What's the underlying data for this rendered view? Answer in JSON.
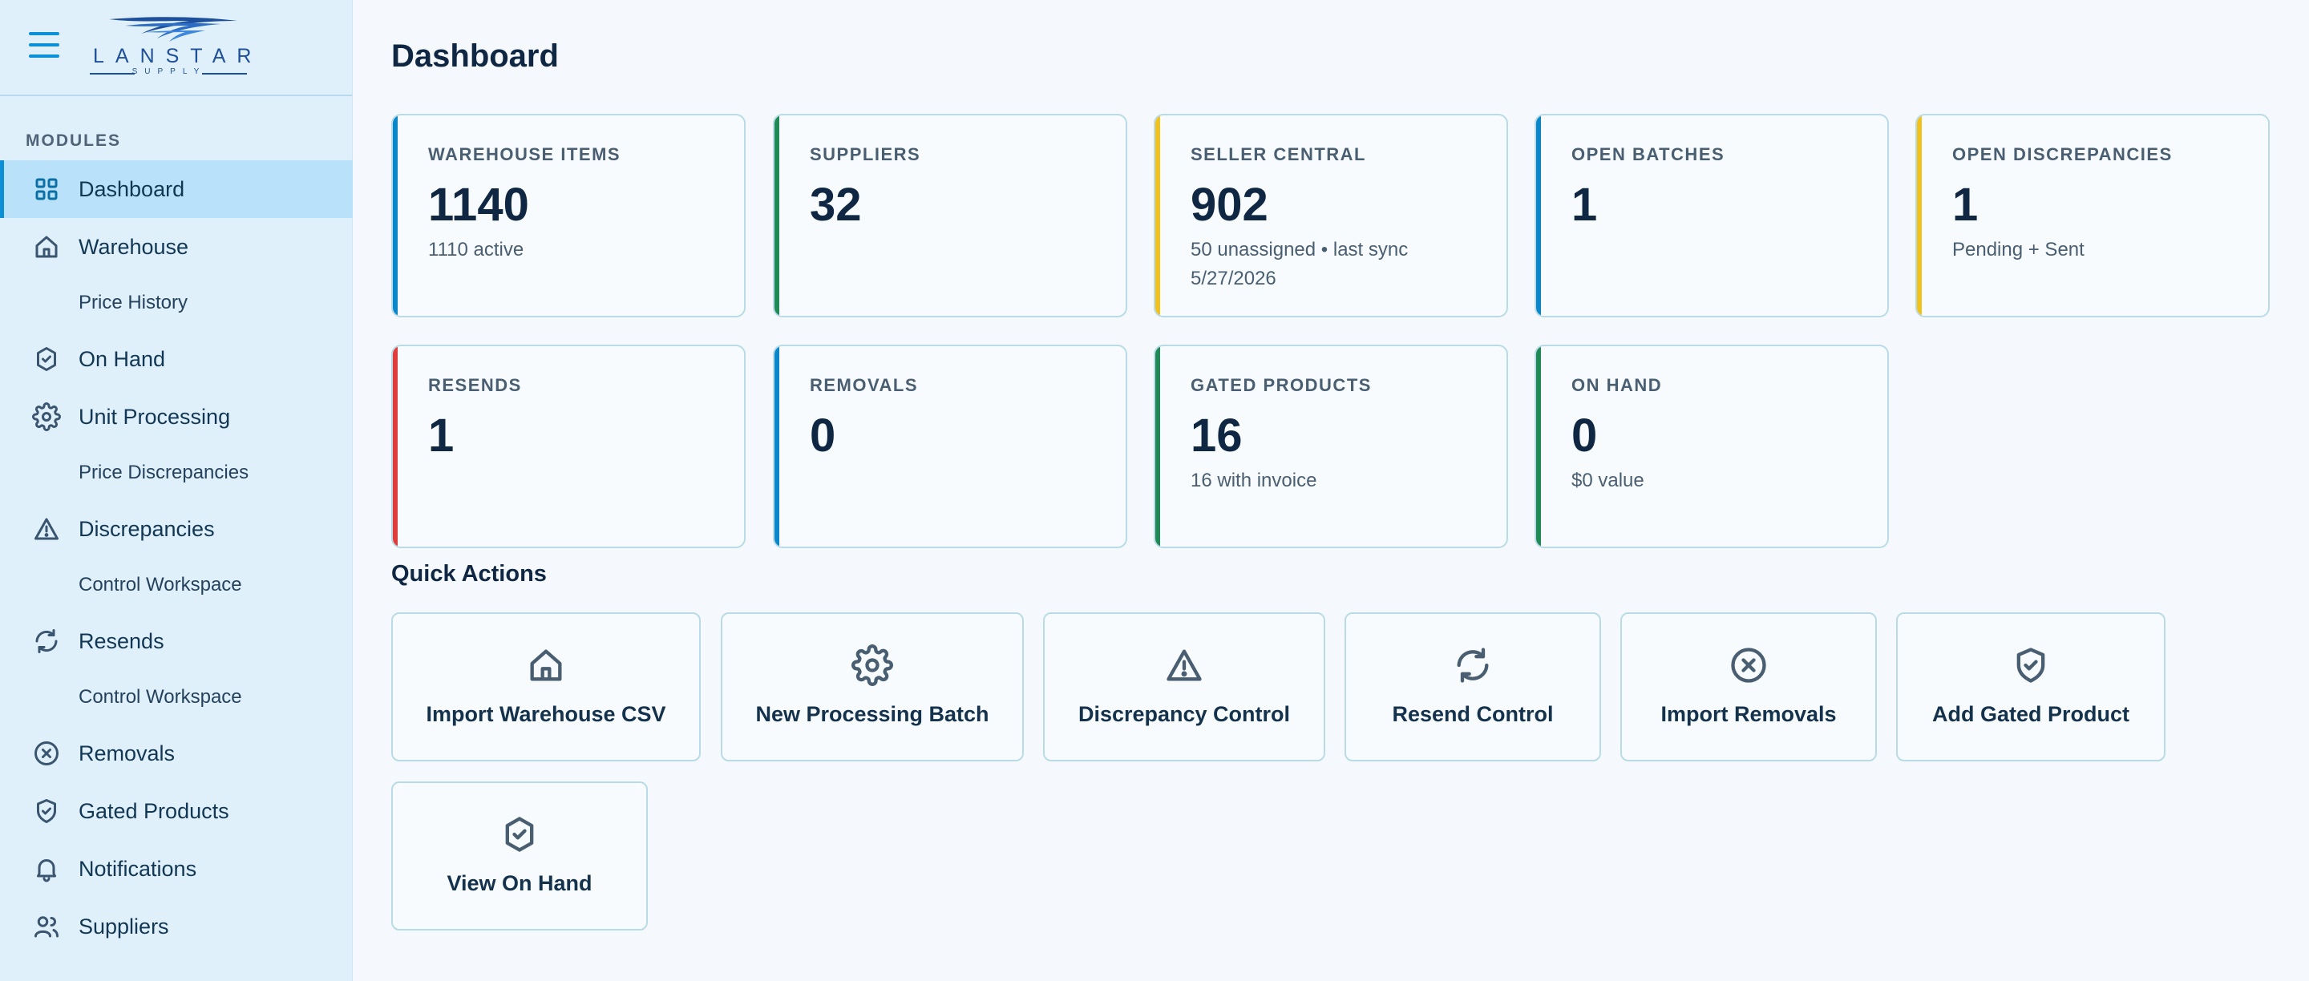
{
  "brand": {
    "name": "LANSTAR",
    "tagline": "SUPPLY"
  },
  "sidebar": {
    "section_label": "MODULES",
    "items": [
      {
        "label": "Dashboard",
        "icon": "grid-icon",
        "sub": false,
        "active": true
      },
      {
        "label": "Warehouse",
        "icon": "home-icon",
        "sub": false
      },
      {
        "label": "Price History",
        "icon": "",
        "sub": true
      },
      {
        "label": "On Hand",
        "icon": "badge-check-icon",
        "sub": false
      },
      {
        "label": "Unit Processing",
        "icon": "gear-icon",
        "sub": false
      },
      {
        "label": "Price Discrepancies",
        "icon": "",
        "sub": true
      },
      {
        "label": "Discrepancies",
        "icon": "warning-icon",
        "sub": false
      },
      {
        "label": "Control Workspace",
        "icon": "",
        "sub": true
      },
      {
        "label": "Resends",
        "icon": "refresh-icon",
        "sub": false
      },
      {
        "label": "Control Workspace",
        "icon": "",
        "sub": true
      },
      {
        "label": "Removals",
        "icon": "x-circle-icon",
        "sub": false
      },
      {
        "label": "Gated Products",
        "icon": "shield-check-icon",
        "sub": false
      },
      {
        "label": "Notifications",
        "icon": "bell-icon",
        "sub": false
      },
      {
        "label": "Suppliers",
        "icon": "users-icon",
        "sub": false
      }
    ]
  },
  "page_title": "Dashboard",
  "colors": {
    "blue": "#0b86c8",
    "green": "#1f8a55",
    "yellow": "#f2c21b",
    "red": "#e03c3c"
  },
  "stats": [
    {
      "label": "WAREHOUSE ITEMS",
      "value": "1140",
      "sub": "1110 active",
      "accent": "#0b86c8"
    },
    {
      "label": "SUPPLIERS",
      "value": "32",
      "sub": "",
      "accent": "#1f8a55"
    },
    {
      "label": "SELLER CENTRAL",
      "value": "902",
      "sub": "50 unassigned • last sync 5/27/2026",
      "accent": "#f2c21b"
    },
    {
      "label": "OPEN BATCHES",
      "value": "1",
      "sub": "",
      "accent": "#0b86c8"
    },
    {
      "label": "OPEN DISCREPANCIES",
      "value": "1",
      "sub": "Pending + Sent",
      "accent": "#f2c21b"
    },
    {
      "label": "RESENDS",
      "value": "1",
      "sub": "",
      "accent": "#e03c3c"
    },
    {
      "label": "REMOVALS",
      "value": "0",
      "sub": "",
      "accent": "#0b86c8"
    },
    {
      "label": "GATED PRODUCTS",
      "value": "16",
      "sub": "16 with invoice",
      "accent": "#1f8a55"
    },
    {
      "label": "ON HAND",
      "value": "0",
      "sub": "$0 value",
      "accent": "#1f8a55"
    }
  ],
  "quick_actions_title": "Quick Actions",
  "quick_actions": [
    {
      "label": "Import Warehouse CSV",
      "icon": "home-icon"
    },
    {
      "label": "New Processing Batch",
      "icon": "gear-icon"
    },
    {
      "label": "Discrepancy Control",
      "icon": "warning-icon"
    },
    {
      "label": "Resend Control",
      "icon": "refresh-icon"
    },
    {
      "label": "Import Removals",
      "icon": "x-circle-icon"
    },
    {
      "label": "Add Gated Product",
      "icon": "shield-check-icon"
    },
    {
      "label": "View On Hand",
      "icon": "badge-check-icon"
    }
  ]
}
